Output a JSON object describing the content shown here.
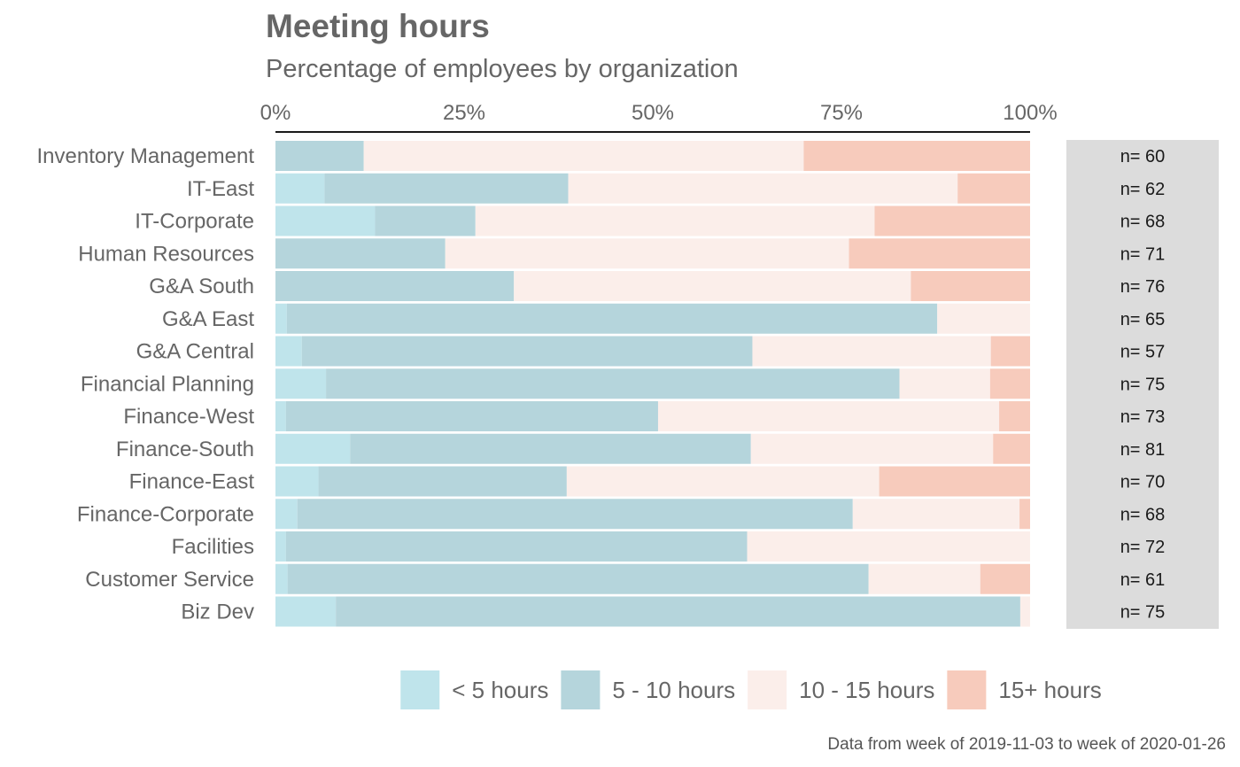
{
  "chart_data": {
    "type": "bar",
    "orientation": "horizontal",
    "stacked": true,
    "title": "Meeting hours",
    "subtitle": "Percentage of employees by organization",
    "caption": "Data from week of 2019-11-03 to week of 2020-01-26",
    "xlim": [
      0,
      100
    ],
    "x_ticks": [
      "0%",
      "25%",
      "50%",
      "75%",
      "100%"
    ],
    "x_tick_values": [
      0,
      25,
      50,
      75,
      100
    ],
    "legend_position": "bottom",
    "categories": [
      "Inventory Management",
      "IT-East",
      "IT-Corporate",
      "Human Resources",
      "G&A South",
      "G&A East",
      "G&A Central",
      "Financial Planning",
      "Finance-West",
      "Finance-South",
      "Finance-East",
      "Finance-Corporate",
      "Facilities",
      "Customer Service",
      "Biz Dev"
    ],
    "n_labels": [
      "n= 60",
      "n= 62",
      "n= 68",
      "n= 71",
      "n= 76",
      "n= 65",
      "n= 57",
      "n= 75",
      "n= 73",
      "n= 81",
      "n= 70",
      "n= 68",
      "n= 72",
      "n= 61",
      "n= 75"
    ],
    "series": [
      {
        "name": "< 5 hours",
        "color": "#bfe4eb",
        "values": [
          0,
          6.5,
          13.2,
          0,
          0,
          1.5,
          3.5,
          6.7,
          1.4,
          9.9,
          5.7,
          2.9,
          1.4,
          1.6,
          8.0
        ]
      },
      {
        "name": "5 - 10 hours",
        "color": "#b5d5dc",
        "values": [
          11.7,
          32.3,
          13.3,
          22.5,
          31.6,
          86.2,
          59.7,
          76.0,
          49.3,
          53.1,
          32.9,
          73.6,
          61.1,
          77.0,
          90.7
        ]
      },
      {
        "name": "10 - 15 hours",
        "color": "#fbeeea",
        "values": [
          58.3,
          51.6,
          52.9,
          53.5,
          52.6,
          12.3,
          31.6,
          12.0,
          45.2,
          32.1,
          41.4,
          22.1,
          37.5,
          14.8,
          1.3
        ]
      },
      {
        "name": "15+ hours",
        "color": "#f7cbbc",
        "values": [
          30.0,
          9.6,
          20.6,
          24.0,
          15.8,
          0,
          5.2,
          5.3,
          4.1,
          4.9,
          20.0,
          1.4,
          0,
          6.6,
          0
        ]
      }
    ],
    "n_panel_color": "#dcdcdc",
    "axis_line_color": "#1a1a1a"
  }
}
